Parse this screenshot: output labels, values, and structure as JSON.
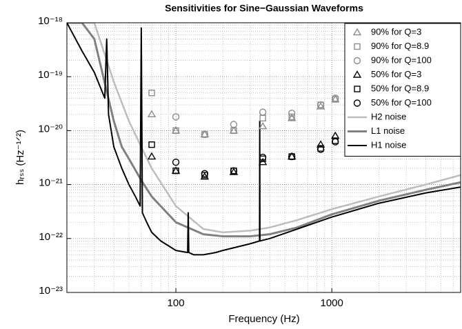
{
  "chart_data": {
    "type": "scatter",
    "title": "Sensitivities for Sine−Gaussian Waveforms",
    "xlabel": "Frequency (Hz)",
    "ylabel": "hᵣₛₛ (Hz⁻¹ᐟ²)",
    "xlog": true,
    "ylog": true,
    "grid": true,
    "legend": "top-right",
    "xlim": [
      20,
      6700
    ],
    "ylim": [
      1e-23,
      1e-18
    ],
    "xticks": [
      100,
      1000
    ],
    "yticks": [
      {
        "value": 1e-18,
        "label": "10⁻¹⁸"
      },
      {
        "value": 1e-19,
        "label": "10⁻¹⁹"
      },
      {
        "value": 1e-20,
        "label": "10⁻²⁰"
      },
      {
        "value": 1e-21,
        "label": "10⁻²¹"
      },
      {
        "value": 1e-22,
        "label": "10⁻²²"
      },
      {
        "value": 1e-23,
        "label": "10⁻²³"
      }
    ],
    "x": [
      70,
      100,
      153,
      235,
      361,
      554,
      849,
      1053
    ],
    "series": [
      {
        "name": "90% for Q=3",
        "marker": "triangle",
        "color": "#8c8c8c",
        "values": [
          2e-20,
          1e-20,
          8.5e-21,
          1e-20,
          1.2e-20,
          1.7e-20,
          2.8e-20,
          3.8e-20
        ]
      },
      {
        "name": "90% for Q=8.9",
        "marker": "square",
        "color": "#8c8c8c",
        "values": [
          5e-20,
          1e-20,
          8.5e-21,
          1e-20,
          1.7e-20,
          1.8e-20,
          3e-20,
          3.8e-20
        ]
      },
      {
        "name": "90% for Q=100",
        "marker": "circle",
        "color": "#8c8c8c",
        "values": [
          null,
          1.8e-20,
          8.5e-21,
          1.3e-20,
          2.2e-20,
          2.1e-20,
          3e-20,
          4e-20
        ]
      },
      {
        "name": "50% for Q=3",
        "marker": "triangle",
        "color": "#000000",
        "values": [
          3.3e-21,
          1.8e-21,
          1.4e-21,
          1.7e-21,
          2.6e-21,
          3.3e-21,
          5.5e-21,
          8e-21
        ]
      },
      {
        "name": "50% for Q=8.9",
        "marker": "square",
        "color": "#000000",
        "values": [
          5.5e-21,
          1.8e-21,
          1.5e-21,
          1.8e-21,
          3e-21,
          3.3e-21,
          4.7e-21,
          6.5e-21
        ]
      },
      {
        "name": "50% for Q=100",
        "marker": "circle",
        "color": "#000000",
        "values": [
          null,
          2.6e-21,
          1.6e-21,
          1.8e-21,
          3.2e-21,
          3.3e-21,
          4.5e-21,
          6.2e-21
        ]
      },
      {
        "name": "H2 noise",
        "marker": "line",
        "color": "#bdbdbd",
        "width": 2.5,
        "x": [
          20,
          30,
          40,
          50,
          60,
          70,
          100,
          150,
          200,
          300,
          400,
          600,
          1000,
          2000,
          4000,
          6700
        ],
        "values": [
          1e-18,
          1e-18,
          8e-20,
          1.5e-20,
          5e-21,
          2e-21,
          4e-22,
          1.5e-22,
          1.3e-22,
          1.4e-22,
          1.6e-22,
          2.2e-22,
          3.5e-22,
          6e-22,
          1e-21,
          1.5e-21
        ]
      },
      {
        "name": "L1 noise",
        "marker": "line",
        "color": "#808080",
        "width": 3,
        "x": [
          20,
          25,
          30,
          40,
          45,
          50,
          60,
          70,
          100,
          150,
          200,
          300,
          400,
          600,
          1000,
          2000,
          4000,
          6700
        ],
        "values": [
          1e-18,
          1e-18,
          5e-19,
          1.5e-20,
          5e-21,
          3e-21,
          1.2e-21,
          6e-22,
          2e-22,
          1.2e-22,
          1.1e-22,
          1.1e-22,
          1.2e-22,
          1.6e-22,
          2.8e-22,
          5e-22,
          8e-22,
          1.1e-21
        ]
      },
      {
        "name": "H1 noise",
        "marker": "line",
        "color": "#000000",
        "width": 2,
        "x": [
          20,
          25,
          30,
          35,
          36,
          37,
          40,
          45,
          50,
          55,
          59,
          60,
          61,
          65,
          70,
          80,
          100,
          119,
          120,
          121,
          130,
          150,
          180,
          200,
          300,
          344,
          345,
          346,
          400,
          600,
          1000,
          2000,
          4000,
          6700
        ],
        "values": [
          1e-18,
          3e-19,
          1.2e-19,
          4e-20,
          5e-19,
          2e-20,
          5e-21,
          2e-21,
          1e-21,
          6e-22,
          4e-22,
          8e-19,
          3e-22,
          2e-22,
          1.3e-22,
          9e-23,
          6e-23,
          5.5e-23,
          3e-22,
          5.5e-23,
          5e-23,
          5e-23,
          5.5e-23,
          6e-23,
          8e-23,
          9e-23,
          1.5e-20,
          9e-23,
          1e-22,
          1.5e-22,
          2.5e-22,
          4.5e-22,
          7e-22,
          9e-22
        ]
      }
    ]
  }
}
